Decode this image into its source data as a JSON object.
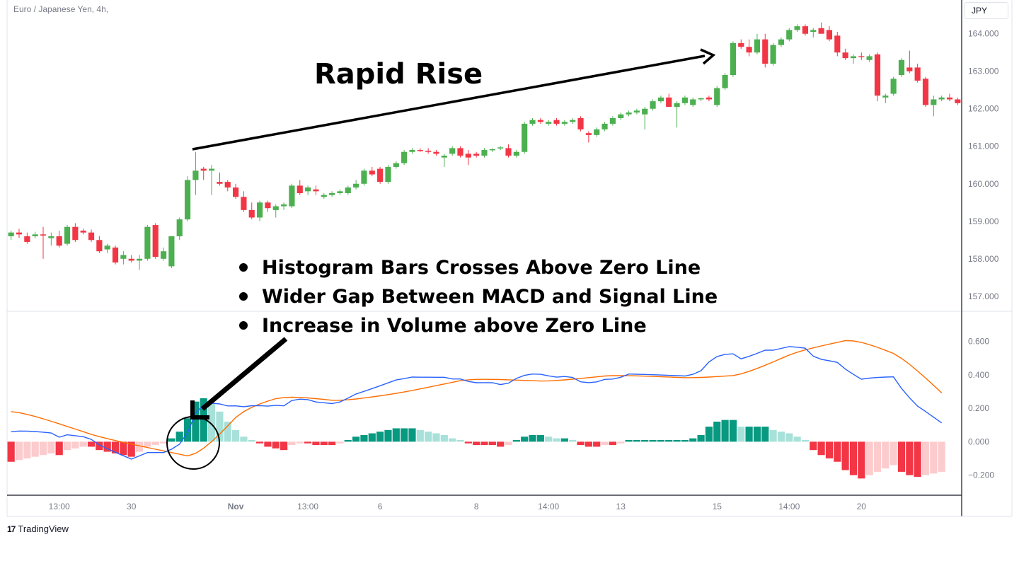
{
  "header": {
    "symbol_title": "Euro / Japanese Yen, 4h,",
    "currency": "JPY"
  },
  "annotations": {
    "title": "Rapid Rise",
    "bullets": [
      "Histogram Bars Crosses Above Zero Line",
      "Wider Gap Between MACD and Signal Line",
      "Increase in Volume above Zero Line"
    ]
  },
  "branding": {
    "logo_mark": "17",
    "logo_text": "TradingView"
  },
  "colors": {
    "up": "#4caf50",
    "down": "#f23645",
    "hist_pos_strong": "#089981",
    "hist_pos_weak": "#a8e1d9",
    "hist_neg_strong": "#f23645",
    "hist_neg_weak": "#fccbcd",
    "macd": "#2962ff",
    "signal": "#ff6d00"
  },
  "chart_data": [
    {
      "type": "candlestick",
      "title": "Euro / Japanese Yen, 4h,",
      "ylim": [
        156.6,
        164.9
      ],
      "y_ticks": [
        "164.000",
        "163.000",
        "162.000",
        "161.000",
        "160.000",
        "159.000",
        "158.000",
        "157.000"
      ],
      "y_tick_values": [
        164,
        163,
        162,
        161,
        160,
        159,
        158,
        157
      ],
      "candles": [
        {
          "o": 158.6,
          "h": 158.75,
          "l": 158.5,
          "c": 158.7
        },
        {
          "o": 158.7,
          "h": 158.8,
          "l": 158.55,
          "c": 158.65
        },
        {
          "o": 158.6,
          "h": 158.7,
          "l": 158.4,
          "c": 158.45
        },
        {
          "o": 158.6,
          "h": 158.72,
          "l": 158.55,
          "c": 158.65
        },
        {
          "o": 158.65,
          "h": 158.85,
          "l": 158.0,
          "c": 158.62
        },
        {
          "o": 158.55,
          "h": 158.7,
          "l": 158.35,
          "c": 158.6
        },
        {
          "o": 158.6,
          "h": 158.75,
          "l": 158.3,
          "c": 158.35
        },
        {
          "o": 158.4,
          "h": 158.9,
          "l": 158.35,
          "c": 158.85
        },
        {
          "o": 158.85,
          "h": 158.95,
          "l": 158.45,
          "c": 158.5
        },
        {
          "o": 158.75,
          "h": 158.8,
          "l": 158.65,
          "c": 158.7
        },
        {
          "o": 158.7,
          "h": 158.78,
          "l": 158.45,
          "c": 158.5
        },
        {
          "o": 158.5,
          "h": 158.6,
          "l": 158.15,
          "c": 158.2
        },
        {
          "o": 158.25,
          "h": 158.4,
          "l": 158.15,
          "c": 158.35
        },
        {
          "o": 158.3,
          "h": 158.35,
          "l": 157.85,
          "c": 157.9
        },
        {
          "o": 158.0,
          "h": 158.2,
          "l": 157.85,
          "c": 158.1
        },
        {
          "o": 158.0,
          "h": 158.1,
          "l": 157.9,
          "c": 157.95
        },
        {
          "o": 157.95,
          "h": 158.1,
          "l": 157.7,
          "c": 158.0
        },
        {
          "o": 158.0,
          "h": 158.9,
          "l": 157.95,
          "c": 158.85
        },
        {
          "o": 158.9,
          "h": 158.95,
          "l": 158.0,
          "c": 158.05
        },
        {
          "o": 158.0,
          "h": 158.3,
          "l": 157.95,
          "c": 158.2
        },
        {
          "o": 157.8,
          "h": 158.6,
          "l": 157.75,
          "c": 158.6
        },
        {
          "o": 158.6,
          "h": 159.1,
          "l": 158.5,
          "c": 159.05
        },
        {
          "o": 159.05,
          "h": 160.2,
          "l": 159.0,
          "c": 160.1
        },
        {
          "o": 160.1,
          "h": 160.85,
          "l": 159.7,
          "c": 160.35
        },
        {
          "o": 160.4,
          "h": 160.45,
          "l": 160.1,
          "c": 160.35
        },
        {
          "o": 160.35,
          "h": 160.5,
          "l": 159.7,
          "c": 160.4
        },
        {
          "o": 160.05,
          "h": 160.3,
          "l": 159.95,
          "c": 160.0
        },
        {
          "o": 160.05,
          "h": 160.1,
          "l": 159.8,
          "c": 159.9
        },
        {
          "o": 159.9,
          "h": 160.0,
          "l": 159.6,
          "c": 159.65
        },
        {
          "o": 159.65,
          "h": 159.8,
          "l": 159.25,
          "c": 159.3
        },
        {
          "o": 159.3,
          "h": 159.5,
          "l": 159.05,
          "c": 159.1
        },
        {
          "o": 159.1,
          "h": 159.55,
          "l": 159.0,
          "c": 159.5
        },
        {
          "o": 159.5,
          "h": 159.55,
          "l": 159.25,
          "c": 159.35
        },
        {
          "o": 159.3,
          "h": 159.45,
          "l": 159.1,
          "c": 159.4
        },
        {
          "o": 159.4,
          "h": 159.5,
          "l": 159.3,
          "c": 159.45
        },
        {
          "o": 159.4,
          "h": 160.0,
          "l": 159.35,
          "c": 159.95
        },
        {
          "o": 159.95,
          "h": 160.1,
          "l": 159.7,
          "c": 159.75
        },
        {
          "o": 159.8,
          "h": 159.95,
          "l": 159.7,
          "c": 159.9
        },
        {
          "o": 159.85,
          "h": 159.95,
          "l": 159.7,
          "c": 159.8
        },
        {
          "o": 159.65,
          "h": 159.75,
          "l": 159.6,
          "c": 159.7
        },
        {
          "o": 159.7,
          "h": 159.8,
          "l": 159.65,
          "c": 159.75
        },
        {
          "o": 159.75,
          "h": 159.85,
          "l": 159.7,
          "c": 159.8
        },
        {
          "o": 159.75,
          "h": 159.95,
          "l": 159.7,
          "c": 159.9
        },
        {
          "o": 159.9,
          "h": 160.1,
          "l": 159.85,
          "c": 160.0
        },
        {
          "o": 160.0,
          "h": 160.4,
          "l": 159.95,
          "c": 160.35
        },
        {
          "o": 160.35,
          "h": 160.45,
          "l": 160.2,
          "c": 160.25
        },
        {
          "o": 160.4,
          "h": 160.45,
          "l": 160.0,
          "c": 160.05
        },
        {
          "o": 160.05,
          "h": 160.5,
          "l": 160.0,
          "c": 160.45
        },
        {
          "o": 160.45,
          "h": 160.6,
          "l": 160.4,
          "c": 160.55
        },
        {
          "o": 160.55,
          "h": 160.9,
          "l": 160.5,
          "c": 160.85
        },
        {
          "o": 160.85,
          "h": 160.95,
          "l": 160.8,
          "c": 160.9
        },
        {
          "o": 160.9,
          "h": 160.95,
          "l": 160.85,
          "c": 160.88
        },
        {
          "o": 160.88,
          "h": 160.95,
          "l": 160.8,
          "c": 160.85
        },
        {
          "o": 160.85,
          "h": 160.9,
          "l": 160.75,
          "c": 160.8
        },
        {
          "o": 160.7,
          "h": 160.8,
          "l": 160.45,
          "c": 160.75
        },
        {
          "o": 160.8,
          "h": 161.0,
          "l": 160.75,
          "c": 160.95
        },
        {
          "o": 160.95,
          "h": 161.0,
          "l": 160.7,
          "c": 160.75
        },
        {
          "o": 160.8,
          "h": 160.9,
          "l": 160.5,
          "c": 160.7
        },
        {
          "o": 160.8,
          "h": 160.85,
          "l": 160.7,
          "c": 160.75
        },
        {
          "o": 160.75,
          "h": 160.95,
          "l": 160.7,
          "c": 160.9
        },
        {
          "o": 160.9,
          "h": 160.95,
          "l": 160.85,
          "c": 160.92
        },
        {
          "o": 160.95,
          "h": 161.0,
          "l": 160.9,
          "c": 160.97
        },
        {
          "o": 160.95,
          "h": 161.05,
          "l": 160.7,
          "c": 160.75
        },
        {
          "o": 160.75,
          "h": 160.9,
          "l": 160.7,
          "c": 160.85
        },
        {
          "o": 160.85,
          "h": 161.65,
          "l": 160.8,
          "c": 161.6
        },
        {
          "o": 161.6,
          "h": 161.75,
          "l": 161.55,
          "c": 161.7
        },
        {
          "o": 161.7,
          "h": 161.75,
          "l": 161.6,
          "c": 161.65
        },
        {
          "o": 161.6,
          "h": 161.7,
          "l": 161.55,
          "c": 161.65
        },
        {
          "o": 161.7,
          "h": 161.75,
          "l": 161.55,
          "c": 161.6
        },
        {
          "o": 161.6,
          "h": 161.7,
          "l": 161.55,
          "c": 161.65
        },
        {
          "o": 161.65,
          "h": 161.75,
          "l": 161.6,
          "c": 161.7
        },
        {
          "o": 161.75,
          "h": 161.8,
          "l": 161.4,
          "c": 161.45
        },
        {
          "o": 161.35,
          "h": 161.4,
          "l": 161.1,
          "c": 161.3
        },
        {
          "o": 161.3,
          "h": 161.5,
          "l": 161.25,
          "c": 161.45
        },
        {
          "o": 161.45,
          "h": 161.65,
          "l": 161.4,
          "c": 161.6
        },
        {
          "o": 161.6,
          "h": 161.8,
          "l": 161.55,
          "c": 161.75
        },
        {
          "o": 161.75,
          "h": 161.9,
          "l": 161.7,
          "c": 161.85
        },
        {
          "o": 161.85,
          "h": 161.95,
          "l": 161.8,
          "c": 161.9
        },
        {
          "o": 161.9,
          "h": 162.0,
          "l": 161.85,
          "c": 161.95
        },
        {
          "o": 161.85,
          "h": 162.05,
          "l": 161.45,
          "c": 162.0
        },
        {
          "o": 162.0,
          "h": 162.25,
          "l": 161.95,
          "c": 162.2
        },
        {
          "o": 162.2,
          "h": 162.35,
          "l": 162.15,
          "c": 162.3
        },
        {
          "o": 162.3,
          "h": 162.4,
          "l": 162.1,
          "c": 162.05
        },
        {
          "o": 162.05,
          "h": 162.2,
          "l": 161.5,
          "c": 162.15
        },
        {
          "o": 162.15,
          "h": 162.35,
          "l": 162.1,
          "c": 162.3
        },
        {
          "o": 162.1,
          "h": 162.3,
          "l": 162.05,
          "c": 162.25
        },
        {
          "o": 162.25,
          "h": 162.3,
          "l": 162.2,
          "c": 162.28
        },
        {
          "o": 162.3,
          "h": 162.35,
          "l": 162.2,
          "c": 162.25
        },
        {
          "o": 162.1,
          "h": 162.6,
          "l": 162.05,
          "c": 162.55
        },
        {
          "o": 162.55,
          "h": 162.95,
          "l": 162.5,
          "c": 162.9
        },
        {
          "o": 162.9,
          "h": 163.8,
          "l": 162.85,
          "c": 163.75
        },
        {
          "o": 163.75,
          "h": 163.85,
          "l": 163.6,
          "c": 163.65
        },
        {
          "o": 163.65,
          "h": 163.85,
          "l": 163.4,
          "c": 163.5
        },
        {
          "o": 163.5,
          "h": 164.0,
          "l": 163.45,
          "c": 163.85
        },
        {
          "o": 163.85,
          "h": 164.0,
          "l": 163.1,
          "c": 163.2
        },
        {
          "o": 163.2,
          "h": 163.75,
          "l": 163.15,
          "c": 163.7
        },
        {
          "o": 163.7,
          "h": 163.9,
          "l": 163.65,
          "c": 163.85
        },
        {
          "o": 163.85,
          "h": 164.15,
          "l": 163.8,
          "c": 164.1
        },
        {
          "o": 164.1,
          "h": 164.25,
          "l": 164.05,
          "c": 164.2
        },
        {
          "o": 164.2,
          "h": 164.25,
          "l": 163.95,
          "c": 164.0
        },
        {
          "o": 164.05,
          "h": 164.15,
          "l": 163.9,
          "c": 164.1
        },
        {
          "o": 164.15,
          "h": 164.3,
          "l": 164.05,
          "c": 164.0
        },
        {
          "o": 164.1,
          "h": 164.2,
          "l": 163.8,
          "c": 163.85
        },
        {
          "o": 163.95,
          "h": 164.05,
          "l": 163.4,
          "c": 163.5
        },
        {
          "o": 163.5,
          "h": 163.6,
          "l": 163.3,
          "c": 163.35
        },
        {
          "o": 163.35,
          "h": 163.45,
          "l": 163.2,
          "c": 163.4
        },
        {
          "o": 163.4,
          "h": 163.5,
          "l": 163.3,
          "c": 163.38
        },
        {
          "o": 163.3,
          "h": 163.45,
          "l": 163.25,
          "c": 163.4
        },
        {
          "o": 163.45,
          "h": 163.5,
          "l": 162.2,
          "c": 162.35
        },
        {
          "o": 162.3,
          "h": 162.4,
          "l": 162.15,
          "c": 162.35
        },
        {
          "o": 162.4,
          "h": 162.85,
          "l": 162.35,
          "c": 162.8
        },
        {
          "o": 162.9,
          "h": 163.35,
          "l": 162.85,
          "c": 163.3
        },
        {
          "o": 163.1,
          "h": 163.55,
          "l": 162.95,
          "c": 163.0
        },
        {
          "o": 163.1,
          "h": 163.2,
          "l": 162.7,
          "c": 162.75
        },
        {
          "o": 162.8,
          "h": 162.85,
          "l": 162.05,
          "c": 162.1
        },
        {
          "o": 162.1,
          "h": 162.35,
          "l": 161.8,
          "c": 162.25
        },
        {
          "o": 162.25,
          "h": 162.35,
          "l": 162.2,
          "c": 162.3
        },
        {
          "o": 162.3,
          "h": 162.4,
          "l": 162.2,
          "c": 162.25
        },
        {
          "o": 162.25,
          "h": 162.3,
          "l": 162.1,
          "c": 162.15
        }
      ]
    },
    {
      "type": "macd",
      "ylim": [
        -0.32,
        0.78
      ],
      "y_ticks": [
        "0.600",
        "0.400",
        "0.200",
        "0.000",
        "−0.200"
      ],
      "y_tick_values": [
        0.6,
        0.4,
        0.2,
        0.0,
        -0.2
      ],
      "x_ticks": [
        "13:00",
        "30",
        "Nov",
        "13:00",
        "6",
        "8",
        "14:00",
        "13",
        "15",
        "14:00",
        "20"
      ],
      "x_tick_bars": [
        6,
        15,
        28,
        37,
        46,
        58,
        67,
        76,
        88,
        97,
        106
      ],
      "histogram": [
        -0.12,
        -0.11,
        -0.1,
        -0.09,
        -0.08,
        -0.07,
        -0.08,
        -0.05,
        -0.04,
        -0.03,
        -0.03,
        -0.05,
        -0.06,
        -0.07,
        -0.08,
        -0.09,
        -0.06,
        -0.03,
        -0.02,
        -0.01,
        0.02,
        0.06,
        0.14,
        0.24,
        0.26,
        0.23,
        0.18,
        0.12,
        0.07,
        0.03,
        0.01,
        -0.01,
        -0.03,
        -0.04,
        -0.05,
        -0.02,
        -0.01,
        -0.01,
        -0.02,
        -0.02,
        -0.02,
        -0.01,
        0.01,
        0.03,
        0.04,
        0.05,
        0.06,
        0.07,
        0.08,
        0.08,
        0.08,
        0.07,
        0.06,
        0.05,
        0.04,
        0.02,
        0.01,
        -0.01,
        -0.02,
        -0.02,
        -0.02,
        -0.03,
        -0.02,
        0.01,
        0.03,
        0.04,
        0.04,
        0.03,
        0.02,
        0.02,
        0.01,
        -0.02,
        -0.03,
        -0.03,
        -0.02,
        -0.02,
        -0.01,
        0.01,
        0.01,
        0.01,
        0.01,
        0.01,
        0.01,
        0.01,
        0.01,
        0.02,
        0.04,
        0.09,
        0.12,
        0.13,
        0.13,
        0.09,
        0.09,
        0.09,
        0.09,
        0.07,
        0.06,
        0.05,
        0.03,
        0.01,
        -0.05,
        -0.08,
        -0.1,
        -0.12,
        -0.17,
        -0.2,
        -0.22,
        -0.2,
        -0.18,
        -0.16,
        -0.14,
        -0.18,
        -0.2,
        -0.21,
        -0.2,
        -0.19,
        -0.18
      ]
    }
  ]
}
